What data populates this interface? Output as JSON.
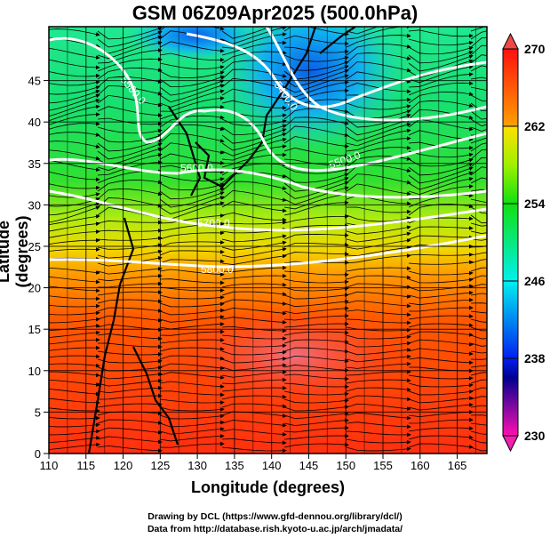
{
  "title": "GSM 06Z09Apr2025 (500.0hPa)",
  "xlabel": "Longitude (degrees)",
  "ylabel": "Latitude  (degrees)",
  "footer": [
    "Drawing by DCL (https://www.gfd-dennou.org/library/dcl/)",
    "Data from http://database.rish.kyoto-u.ac.jp/arch/jmadata/"
  ],
  "chart_data": {
    "type": "heatmap",
    "title": "GSM 06Z09Apr2025 (500.0hPa)",
    "xlabel": "Longitude (degrees)",
    "ylabel": "Latitude  (degrees)",
    "xlim": [
      110,
      169
    ],
    "ylim": [
      0,
      51.5
    ],
    "xticks": [
      "110",
      "115",
      "120",
      "125",
      "130",
      "135",
      "140",
      "145",
      "150",
      "155",
      "160",
      "165"
    ],
    "yticks": [
      "0",
      "5",
      "10",
      "15",
      "20",
      "25",
      "30",
      "35",
      "40",
      "45"
    ],
    "colorbar": {
      "min": 230,
      "max": 270,
      "ticks": [
        "230",
        "238",
        "246",
        "254",
        "262",
        "270"
      ]
    },
    "contour_labels": [
      "5500.0",
      "5400.0",
      "5600.0",
      "5500.0",
      "5700.0",
      "5800.0"
    ],
    "fields": [
      "temperature (K, shaded)",
      "geopotential height (m, white contours)",
      "wind (streamlines)"
    ]
  }
}
